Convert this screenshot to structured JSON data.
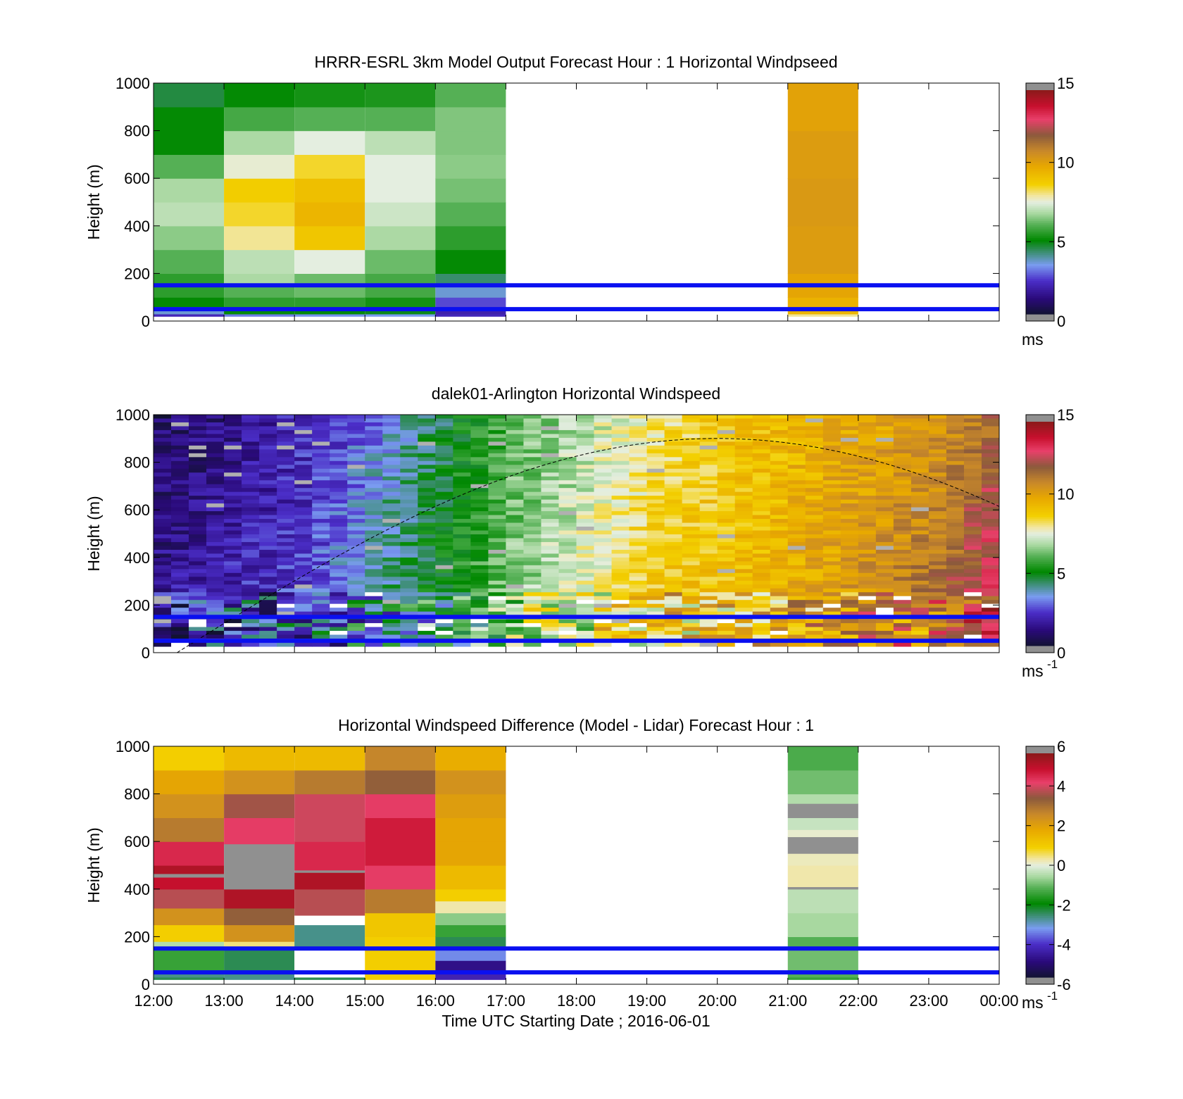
{
  "figure": {
    "xlabel": "Time UTC  Starting Date ; 2016-06-01",
    "x_ticks": [
      "12:00",
      "13:00",
      "14:00",
      "15:00",
      "16:00",
      "17:00",
      "18:00",
      "19:00",
      "20:00",
      "21:00",
      "22:00",
      "23:00",
      "00:00"
    ]
  },
  "chart_data": [
    {
      "type": "heatmap",
      "title": "HRRR-ESRL 3km Model Output   Forecast Hour : 1 Horizontal Windpseed",
      "ylabel": "Height (m)",
      "xlim": [
        "12:00",
        "00:00"
      ],
      "ylim": [
        0,
        1000
      ],
      "y_ticks": [
        0,
        200,
        400,
        600,
        800,
        1000
      ],
      "colorbar": {
        "min": 0,
        "max": 15,
        "ticks": [
          0,
          5,
          10,
          15
        ],
        "unit": "ms"
      },
      "hlines_m": [
        150,
        50
      ],
      "columns": [
        {
          "start": "12:00",
          "end": "13:00",
          "rows": [
            [
              30,
              2
            ],
            [
              60,
              3.5
            ],
            [
              100,
              5
            ],
            [
              200,
              5.5
            ],
            [
              300,
              6
            ],
            [
              400,
              6.5
            ],
            [
              500,
              7
            ],
            [
              600,
              6.8
            ],
            [
              700,
              6
            ],
            [
              800,
              5
            ],
            [
              900,
              5
            ],
            [
              1000,
              4.5
            ]
          ]
        },
        {
          "start": "13:00",
          "end": "14:00",
          "rows": [
            [
              30,
              3
            ],
            [
              60,
              5
            ],
            [
              100,
              5.5
            ],
            [
              150,
              6
            ],
            [
              200,
              6.8
            ],
            [
              300,
              7
            ],
            [
              400,
              8
            ],
            [
              500,
              8.5
            ],
            [
              600,
              8.8
            ],
            [
              700,
              7.6
            ],
            [
              800,
              6.8
            ],
            [
              900,
              5.8
            ],
            [
              1000,
              5
            ]
          ]
        },
        {
          "start": "14:00",
          "end": "15:00",
          "rows": [
            [
              30,
              3.2
            ],
            [
              60,
              5
            ],
            [
              100,
              5.5
            ],
            [
              200,
              6.2
            ],
            [
              300,
              7.5
            ],
            [
              400,
              9
            ],
            [
              500,
              9.5
            ],
            [
              600,
              9.2
            ],
            [
              700,
              8.5
            ],
            [
              800,
              7.5
            ],
            [
              900,
              6
            ],
            [
              1000,
              5.2
            ]
          ]
        },
        {
          "start": "15:00",
          "end": "16:00",
          "rows": [
            [
              30,
              3.3
            ],
            [
              60,
              4.8
            ],
            [
              100,
              5.2
            ],
            [
              200,
              5.8
            ],
            [
              300,
              6.2
            ],
            [
              400,
              6.8
            ],
            [
              500,
              7.2
            ],
            [
              700,
              7.5
            ],
            [
              800,
              7
            ],
            [
              900,
              6
            ],
            [
              1000,
              5.3
            ]
          ]
        },
        {
          "start": "16:00",
          "end": "17:00",
          "rows": [
            [
              30,
              2
            ],
            [
              60,
              1.8
            ],
            [
              100,
              2.5
            ],
            [
              150,
              3.5
            ],
            [
              200,
              4.2
            ],
            [
              300,
              5
            ],
            [
              400,
              5.5
            ],
            [
              500,
              6
            ],
            [
              600,
              6.3
            ],
            [
              700,
              6.5
            ],
            [
              800,
              6.4
            ],
            [
              900,
              6.4
            ],
            [
              1000,
              6
            ]
          ]
        },
        {
          "start": "21:00",
          "end": "22:00",
          "rows": [
            [
              30,
              8
            ],
            [
              60,
              9.5
            ],
            [
              100,
              9.6
            ],
            [
              200,
              10
            ],
            [
              400,
              10.3
            ],
            [
              600,
              10.4
            ],
            [
              800,
              10.3
            ],
            [
              1000,
              10.1
            ]
          ]
        }
      ]
    },
    {
      "type": "heatmap",
      "title": "dalek01-Arlington  Horizontal Windspeed",
      "ylabel": "Height (m)",
      "xlim": [
        "12:00",
        "00:00"
      ],
      "ylim": [
        0,
        1000
      ],
      "y_ticks": [
        0,
        200,
        400,
        600,
        800,
        1000
      ],
      "colorbar": {
        "min": 0,
        "max": 15,
        "ticks": [
          0,
          5,
          10,
          15
        ],
        "unit": "ms",
        "unit_exponent": "-1"
      },
      "hlines_m": [
        150,
        50
      ],
      "boundary_layer_curve": {
        "x_start": "12:20",
        "peak_time": "20:00",
        "peak_height_m": 900,
        "end_time": "00:00",
        "end_height_m": 600,
        "style": "dashed"
      },
      "profiles_m_s": [
        [
          0.8,
          1.2,
          2.0,
          3.0,
          4.5,
          6.0,
          7.0,
          8.0,
          9.0,
          9.5,
          10.0,
          10.5,
          12.0
        ],
        [
          1.0,
          1.5,
          2.2,
          3.5,
          4.8,
          6.2,
          7.3,
          8.5,
          9.0,
          9.6,
          10.3,
          11.0,
          13.0
        ],
        [
          1.5,
          2.0,
          2.5,
          3.8,
          5.0,
          6.5,
          7.6,
          8.8,
          9.2,
          9.8,
          10.6,
          11.5,
          13.5
        ]
      ],
      "profile_levels": [
        "top 1000 m",
        "middle 600 m",
        "low 250 m"
      ]
    },
    {
      "type": "heatmap",
      "title": "Horizontal Windspeed Difference (Model - Lidar) Forecast Hour : 1",
      "ylabel": "Height (m)",
      "xlabel": "Time UTC  Starting Date ; 2016-06-01",
      "xlim": [
        "12:00",
        "00:00"
      ],
      "ylim": [
        0,
        1000
      ],
      "y_ticks": [
        0,
        200,
        400,
        600,
        800,
        1000
      ],
      "colorbar": {
        "min": -6,
        "max": 6,
        "ticks": [
          -6,
          -4,
          -2,
          0,
          2,
          4,
          6
        ],
        "unit": "ms",
        "unit_exponent": "-1"
      },
      "hlines_m": [
        150,
        50
      ],
      "columns": [
        {
          "start": "12:00",
          "end": "13:00",
          "rows": [
            [
              30,
              -2.5
            ],
            [
              60,
              -2.8
            ],
            [
              150,
              -1.5
            ],
            [
              180,
              -0.5
            ],
            [
              250,
              1
            ],
            [
              320,
              2.5
            ],
            [
              400,
              4
            ],
            [
              450,
              5.2
            ],
            [
              465,
              -10
            ],
            [
              500,
              5.5
            ],
            [
              600,
              4.8
            ],
            [
              700,
              3
            ],
            [
              800,
              2.5
            ],
            [
              900,
              2
            ],
            [
              1000,
              1
            ]
          ]
        },
        {
          "start": "13:00",
          "end": "14:00",
          "rows": [
            [
              50,
              -2.8
            ],
            [
              160,
              -2.5
            ],
            [
              180,
              0.5
            ],
            [
              250,
              2.5
            ],
            [
              320,
              3.5
            ],
            [
              400,
              5.5
            ],
            [
              590,
              -10
            ],
            [
              700,
              4.5
            ],
            [
              800,
              3.8
            ],
            [
              900,
              2.5
            ],
            [
              1000,
              1.5
            ]
          ]
        },
        {
          "start": "14:00",
          "end": "15:00",
          "rows": [
            [
              30,
              -2.5
            ],
            [
              150,
              null
            ],
            [
              250,
              -2.8
            ],
            [
              290,
              null
            ],
            [
              400,
              4
            ],
            [
              470,
              5.5
            ],
            [
              480,
              -10
            ],
            [
              600,
              4.8
            ],
            [
              800,
              4.2
            ],
            [
              900,
              3
            ],
            [
              1000,
              1.5
            ]
          ]
        },
        {
          "start": "15:00",
          "end": "16:00",
          "rows": [
            [
              150,
              1
            ],
            [
              200,
              1
            ],
            [
              300,
              1.2
            ],
            [
              400,
              3
            ],
            [
              500,
              4.5
            ],
            [
              700,
              5
            ],
            [
              800,
              4.5
            ],
            [
              900,
              3.5
            ],
            [
              1000,
              2.8
            ]
          ]
        },
        {
          "start": "16:00",
          "end": "17:00",
          "rows": [
            [
              50,
              -4.5
            ],
            [
              100,
              -5
            ],
            [
              150,
              -3.5
            ],
            [
              200,
              -2.5
            ],
            [
              250,
              -1.5
            ],
            [
              300,
              -0.8
            ],
            [
              350,
              0.3
            ],
            [
              400,
              1
            ],
            [
              500,
              1.5
            ],
            [
              600,
              2
            ],
            [
              700,
              2
            ],
            [
              800,
              2.2
            ],
            [
              900,
              2.5
            ],
            [
              1000,
              1.8
            ]
          ]
        },
        {
          "start": "21:00",
          "end": "22:00",
          "rows": [
            [
              30,
              -1.5
            ],
            [
              60,
              -1.2
            ],
            [
              150,
              -1.0
            ],
            [
              200,
              -1.2
            ],
            [
              300,
              -0.6
            ],
            [
              400,
              -0.4
            ],
            [
              410,
              -9
            ],
            [
              500,
              0.3
            ],
            [
              550,
              0.2
            ],
            [
              620,
              -9
            ],
            [
              650,
              0.1
            ],
            [
              700,
              -0.3
            ],
            [
              760,
              -9
            ],
            [
              800,
              -0.5
            ],
            [
              900,
              -1.0
            ],
            [
              1000,
              -1.3
            ]
          ]
        }
      ]
    }
  ]
}
